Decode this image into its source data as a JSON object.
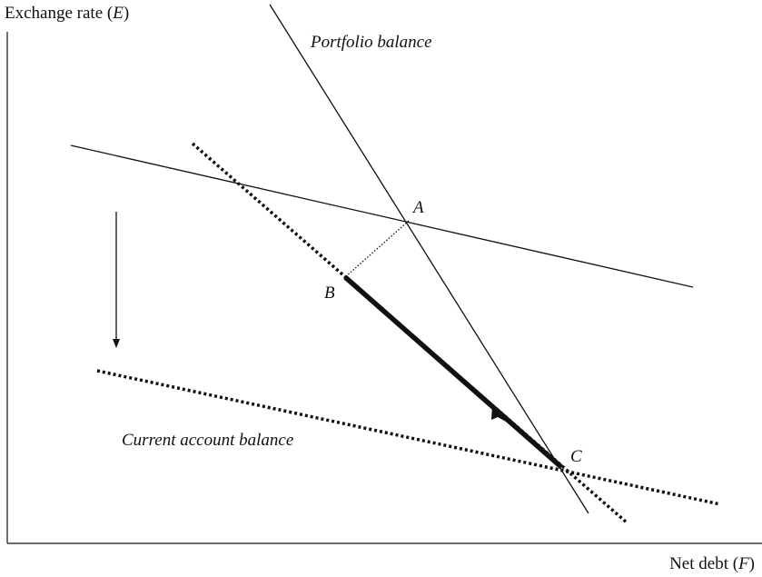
{
  "axes": {
    "y_label": [
      "Exchange rate (",
      "E",
      ")"
    ],
    "x_label": [
      "Net debt (",
      "F",
      ")"
    ]
  },
  "curves": {
    "portfolio": "Portfolio balance",
    "current_account": "Current account balance"
  },
  "points": {
    "a": "A",
    "b": "B",
    "c": "C"
  }
}
